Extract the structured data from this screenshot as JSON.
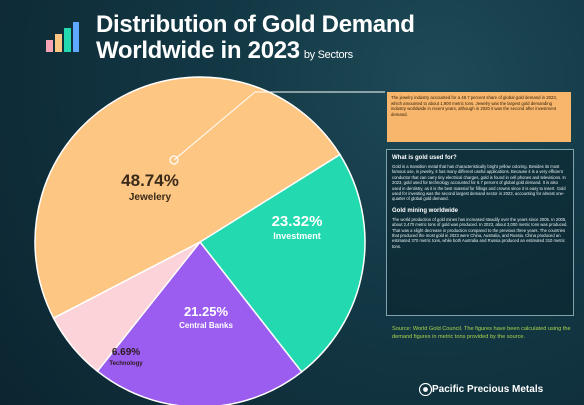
{
  "title": {
    "line1": "Distribution of Gold Demand",
    "line2": "Worldwide in 2023",
    "suffix": "by Sectors"
  },
  "colors": {
    "jewelery": "#fdc683",
    "investment": "#22d9b0",
    "central_banks": "#9b5cf0",
    "technology": "#fbd3d8",
    "background": "#133845",
    "note_box": "#f7b66b",
    "source_text": "#a9d64e"
  },
  "chart_data": {
    "type": "pie",
    "title": "Distribution of Gold Demand Worldwide in 2023",
    "slices": [
      {
        "name": "Jewelery",
        "value": 48.74,
        "label": "48.74%"
      },
      {
        "name": "Investment",
        "value": 23.32,
        "label": "23.32%"
      },
      {
        "name": "Central Banks",
        "value": 21.25,
        "label": "21.25%"
      },
      {
        "name": "Technology",
        "value": 6.69,
        "label": "6.69%"
      }
    ]
  },
  "note": "The jewelry industry accounted for a 48.7 percent share of global gold demand in 2023, which amounted to about 1,900 metric tons. Jewelry was the largest gold demanding industry worldwide in recent years, although in 2020 it was the second after investment demand.",
  "info": {
    "heading1": "What is gold used for?",
    "para1": "Gold is a transition metal that has characteristically bright yellow coloring. Besides its most famous use, in jewelry, it has many different useful applications. Because it is a very efficient conductor that can carry tiny electrical charges, gold is found in cell phones and televisions. In 2023, gold used for technology accounted for 6.7 percent of global gold demand. It is also used in dentistry, as it is the best material for fillings and crowns since it is easy to insert. Gold used for investing was the second largest demand sector in 2023, accounting for almost one-quarter of global gold demand.",
    "heading2": "Gold mining worldwide",
    "para2": "The world production of gold mines has increased steadily over the years since 2005. In 2005, about 2,470 metric tons of gold was produced. In 2023, about 3,000 metric tons was produced. That was a slight decrease in production compared to the previous three years. The countries that produced the most gold in 2023 were China, Australia, and Russia. China produced an estimated 370 metric tons, while both Australia and Russia produced an estimated 310 metric tons."
  },
  "source": "Source: World Gold Council. The figures have been calculated using the demand figures in metric tons provided by the source.",
  "brand": "Pacific Precious Metals"
}
